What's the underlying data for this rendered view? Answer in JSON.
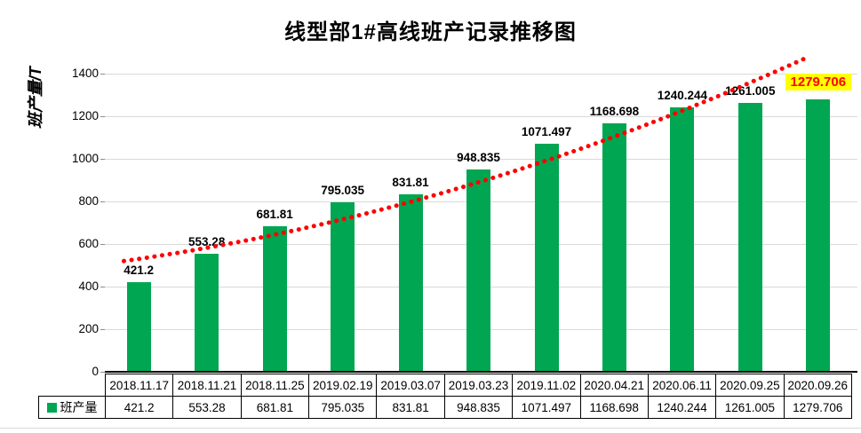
{
  "chart": {
    "title": "线型部1#高线班产记录推移图",
    "y_axis_title": "班产量/T",
    "legend_label": "班产量"
  },
  "chart_data": {
    "type": "bar",
    "title": "线型部1#高线班产记录推移图",
    "xlabel": "",
    "ylabel": "班产量/T",
    "ylim": [
      0,
      1500
    ],
    "y_ticks": [
      0,
      200,
      400,
      600,
      800,
      1000,
      1200,
      1400
    ],
    "grid": true,
    "gridline_color": "#d9d9d9",
    "legend_position": "bottom-left",
    "categories": [
      "2018.11.17",
      "2018.11.21",
      "2018.11.25",
      "2019.02.19",
      "2019.03.07",
      "2019.03.23",
      "2019.11.02",
      "2020.04.21",
      "2020.06.11",
      "2020.09.25",
      "2020.09.26"
    ],
    "series": [
      {
        "name": "班产量",
        "color": "#00a651",
        "values": [
          421.2,
          553.28,
          681.81,
          795.035,
          831.81,
          948.835,
          1071.497,
          1168.698,
          1240.244,
          1261.005,
          1279.706
        ]
      }
    ],
    "value_labels": [
      "421.2",
      "553.28",
      "681.81",
      "795.035",
      "831.81",
      "948.835",
      "1071.497",
      "1168.698",
      "1240.244",
      "1261.005",
      "1279.706"
    ],
    "highlight": {
      "index": 10,
      "label": "1279.706",
      "background": "#ffff00",
      "text_color": "#ff0000"
    },
    "trendline": {
      "style": "dotted",
      "color": "#ff0000",
      "fit": "polynomial_order2",
      "coefficients": {
        "a": 530,
        "b": 47,
        "c": 5
      },
      "index_start": -0.22,
      "index_end": 9.95
    }
  }
}
